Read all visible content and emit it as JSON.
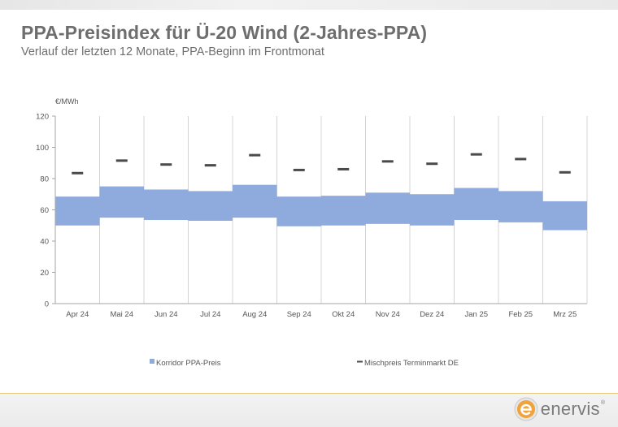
{
  "header": {
    "title": "PPA-Preisindex für Ü-20 Wind (2-Jahres-PPA)",
    "subtitle": "Verlauf der letzten 12 Monate, PPA-Beginn im Frontmonat"
  },
  "chart_data": {
    "type": "bar",
    "unit_label": "€/MWh",
    "categories": [
      "Apr 24",
      "Mai 24",
      "Jun 24",
      "Jul 24",
      "Aug 24",
      "Sep 24",
      "Okt 24",
      "Nov 24",
      "Dez 24",
      "Jan 25",
      "Feb 25",
      "Mrz 25"
    ],
    "series": [
      {
        "name": "Korridor PPA-Preis",
        "kind": "range-bar",
        "color": "#8faadc",
        "low": [
          50,
          55,
          53.5,
          53,
          55,
          49.5,
          50,
          51,
          50,
          53.5,
          52,
          47
        ],
        "high": [
          68.5,
          75,
          73,
          72,
          76,
          68.5,
          69,
          71,
          70,
          74,
          72,
          65.5
        ]
      },
      {
        "name": "Mischpreis Terminmarkt DE",
        "kind": "marker",
        "color": "#4a4a4a",
        "values": [
          83.5,
          91.5,
          89,
          88.5,
          95,
          85.5,
          86,
          91,
          89.5,
          95.5,
          92.5,
          84
        ]
      }
    ],
    "yticks": [
      0,
      20,
      40,
      60,
      80,
      100,
      120
    ],
    "ylim": [
      0,
      120
    ],
    "grid": "vertical",
    "legend": "bottom"
  },
  "logo": {
    "text": "enervis",
    "mark": "®"
  }
}
